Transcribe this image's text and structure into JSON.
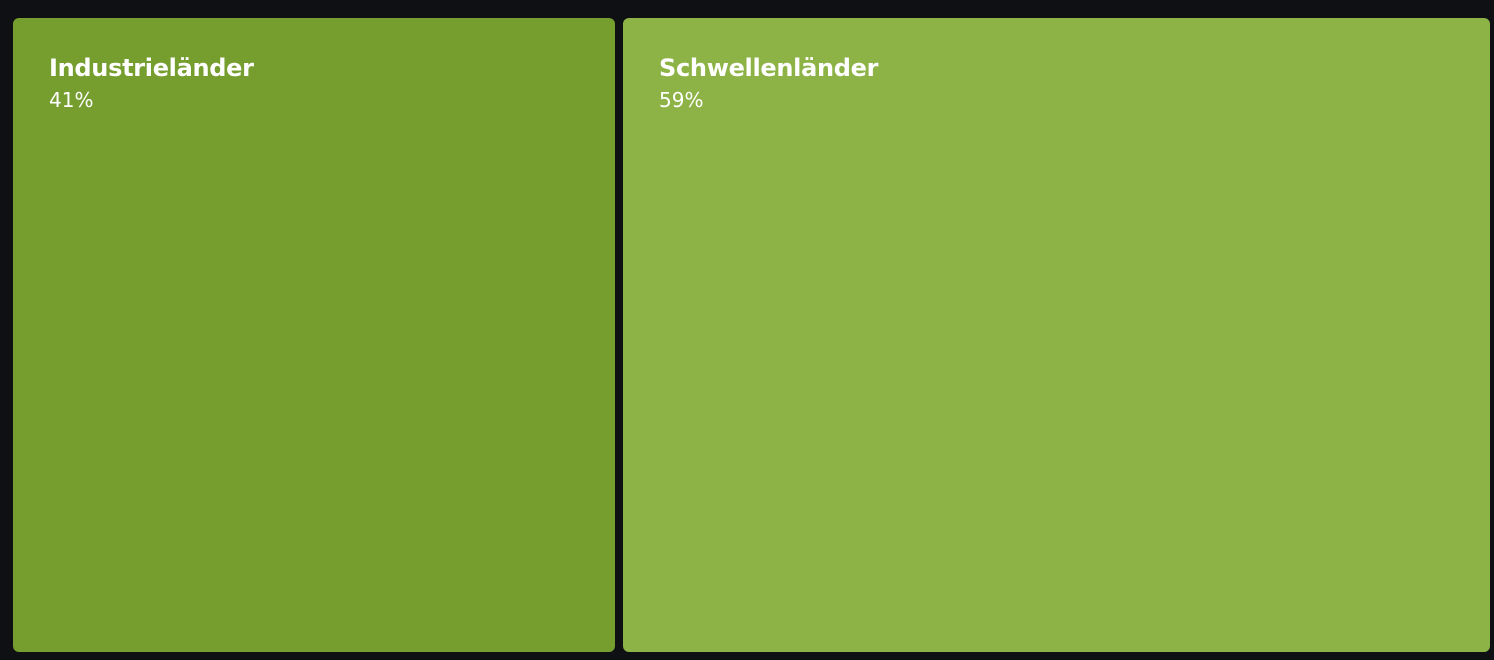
{
  "chart_data": {
    "type": "treemap",
    "title": "",
    "unit": "%",
    "items": [
      {
        "name": "Industrieländer",
        "value": 41,
        "label": "41%",
        "color": "#759e2f"
      },
      {
        "name": "Schwellenländer",
        "value": 59,
        "label": "59%",
        "color": "#8db346"
      }
    ]
  },
  "colors": {
    "background": "#0f1014",
    "text": "#ffffff"
  }
}
